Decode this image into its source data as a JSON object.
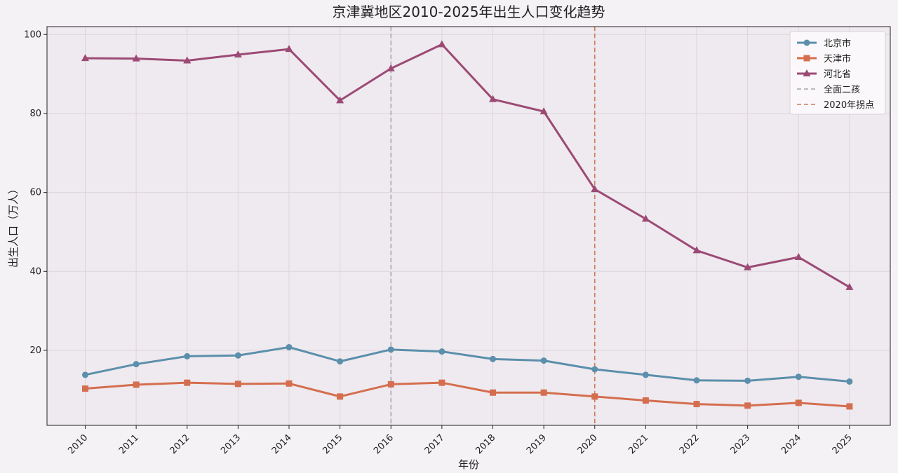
{
  "chart_data": {
    "type": "line",
    "title": "京津冀地区2010-2025年出生人口变化趋势",
    "xlabel": "年份",
    "ylabel": "出生人口（万人）",
    "x": [
      2010,
      2011,
      2012,
      2013,
      2014,
      2015,
      2016,
      2017,
      2018,
      2019,
      2020,
      2021,
      2022,
      2023,
      2024,
      2025
    ],
    "xlim": [
      2009.25,
      2025.8
    ],
    "ylim": [
      1,
      102
    ],
    "yticks": [
      20,
      40,
      60,
      80,
      100
    ],
    "grid": true,
    "legend_position": "top-right",
    "series": [
      {
        "name": "北京市",
        "color": "#5b8fab",
        "marker": "circle",
        "values": [
          13.8,
          16.5,
          18.5,
          18.7,
          20.8,
          17.2,
          20.2,
          19.7,
          17.8,
          17.4,
          15.2,
          13.8,
          12.4,
          12.3,
          13.3,
          12.1
        ]
      },
      {
        "name": "天津市",
        "color": "#d46e4f",
        "marker": "square",
        "values": [
          10.3,
          11.3,
          11.8,
          11.5,
          11.6,
          8.3,
          11.4,
          11.8,
          9.3,
          9.3,
          8.3,
          7.3,
          6.4,
          6.0,
          6.7,
          5.8
        ]
      },
      {
        "name": "河北省",
        "color": "#9c4a75",
        "marker": "triangle",
        "values": [
          94.0,
          93.9,
          93.4,
          94.9,
          96.3,
          83.3,
          91.4,
          97.5,
          83.6,
          80.5,
          60.8,
          53.3,
          45.3,
          41.0,
          43.6,
          36.0
        ]
      }
    ],
    "reference_lines": [
      {
        "name": "全面二孩",
        "x": 2016,
        "color": "#a8a8a8"
      },
      {
        "name": "2020年拐点",
        "x": 2020,
        "color": "#d07a5a"
      }
    ]
  }
}
